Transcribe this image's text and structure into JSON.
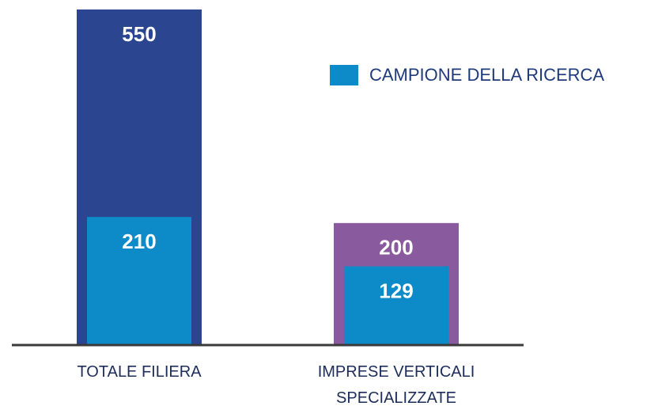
{
  "chart_data": {
    "type": "bar",
    "categories": [
      "TOTALE FILIERA",
      "IMPRESE VERTICALI SPECIALIZZATE"
    ],
    "series": [
      {
        "colors": [
          "#2b4590",
          "#8a5a9f"
        ],
        "values": [
          550,
          200
        ]
      },
      {
        "name": "CAMPIONE DELLA RICERCA",
        "color": "#0d8ac8",
        "values": [
          210,
          129
        ]
      }
    ],
    "ylim": [
      0,
      550
    ],
    "legend": "upper right"
  }
}
